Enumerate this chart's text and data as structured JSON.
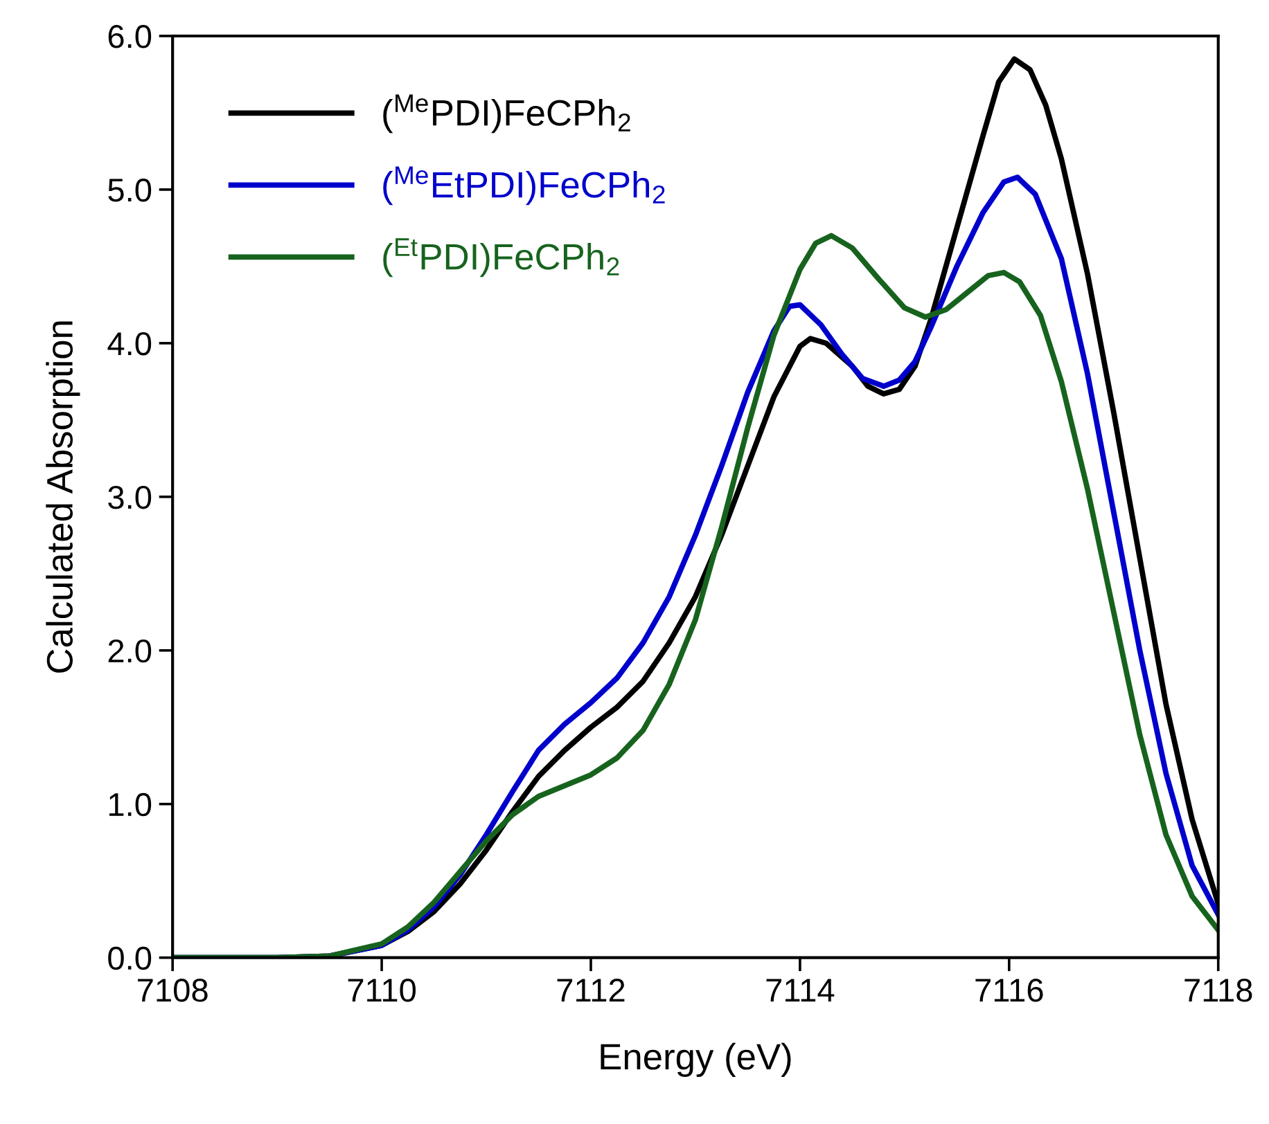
{
  "chart_data": {
    "type": "line",
    "xlabel": "Energy (eV)",
    "ylabel": "Calculated Absorption",
    "xlim": [
      7108,
      7118
    ],
    "ylim": [
      0,
      6
    ],
    "xticks": [
      7108,
      7110,
      7112,
      7114,
      7116,
      7118
    ],
    "yticks": [
      {
        "value": 0,
        "label": "0.0"
      },
      {
        "value": 1,
        "label": "1.0"
      },
      {
        "value": 2,
        "label": "2.0"
      },
      {
        "value": 3,
        "label": "3.0"
      },
      {
        "value": 4,
        "label": "4.0"
      },
      {
        "value": 5,
        "label": "5.0"
      },
      {
        "value": 6,
        "label": "6.0"
      }
    ],
    "grid": false,
    "legend": "top left",
    "marker": "none",
    "line_style": "solid",
    "series": [
      {
        "name": "($^{Me}$PDI)FeCPh$_{2}$",
        "color": "#000000",
        "x": [
          7108,
          7109,
          7109.5,
          7110,
          7110.25,
          7110.5,
          7110.75,
          7111,
          7111.25,
          7111.5,
          7111.75,
          7112,
          7112.25,
          7112.5,
          7112.75,
          7113,
          7113.25,
          7113.5,
          7113.75,
          7114,
          7114.1,
          7114.25,
          7114.5,
          7114.65,
          7114.8,
          7114.95,
          7115.1,
          7115.25,
          7115.5,
          7115.75,
          7115.9,
          7116.05,
          7116.2,
          7116.35,
          7116.5,
          7116.75,
          7117,
          7117.25,
          7117.5,
          7117.75,
          7118
        ],
        "values": [
          0,
          0,
          0.01,
          0.08,
          0.17,
          0.3,
          0.48,
          0.7,
          0.95,
          1.18,
          1.35,
          1.5,
          1.63,
          1.8,
          2.05,
          2.35,
          2.75,
          3.2,
          3.65,
          3.98,
          4.03,
          4.0,
          3.85,
          3.72,
          3.67,
          3.7,
          3.85,
          4.15,
          4.75,
          5.35,
          5.7,
          5.85,
          5.78,
          5.55,
          5.2,
          4.45,
          3.55,
          2.6,
          1.65,
          0.9,
          0.35
        ]
      },
      {
        "name": "($^{Me}$EtPDI)FeCPh$_{2}$",
        "color": "#0000cc",
        "x": [
          7108,
          7109,
          7109.5,
          7110,
          7110.25,
          7110.5,
          7110.75,
          7111,
          7111.25,
          7111.5,
          7111.75,
          7112,
          7112.25,
          7112.5,
          7112.75,
          7113,
          7113.25,
          7113.5,
          7113.75,
          7113.9,
          7114,
          7114.2,
          7114.4,
          7114.6,
          7114.8,
          7114.95,
          7115.1,
          7115.25,
          7115.5,
          7115.75,
          7115.95,
          7116.08,
          7116.25,
          7116.5,
          7116.75,
          7117,
          7117.25,
          7117.5,
          7117.75,
          7118
        ],
        "values": [
          0,
          0,
          0.01,
          0.08,
          0.18,
          0.33,
          0.54,
          0.8,
          1.08,
          1.35,
          1.52,
          1.66,
          1.82,
          2.05,
          2.35,
          2.75,
          3.2,
          3.68,
          4.08,
          4.24,
          4.25,
          4.12,
          3.93,
          3.77,
          3.72,
          3.76,
          3.88,
          4.1,
          4.5,
          4.85,
          5.05,
          5.08,
          4.97,
          4.55,
          3.8,
          2.9,
          2.0,
          1.2,
          0.6,
          0.28
        ]
      },
      {
        "name": "($^{Et}$PDI)FeCPh$_{2}$",
        "color": "#17631e",
        "x": [
          7108,
          7109,
          7109.5,
          7110,
          7110.25,
          7110.5,
          7110.75,
          7111,
          7111.25,
          7111.5,
          7111.75,
          7112,
          7112.25,
          7112.5,
          7112.75,
          7113,
          7113.25,
          7113.5,
          7113.75,
          7114,
          7114.15,
          7114.3,
          7114.5,
          7114.75,
          7115,
          7115.2,
          7115.4,
          7115.6,
          7115.8,
          7115.95,
          7116.1,
          7116.3,
          7116.5,
          7116.75,
          7117,
          7117.25,
          7117.5,
          7117.75,
          7118
        ],
        "values": [
          0,
          0,
          0.01,
          0.09,
          0.2,
          0.36,
          0.56,
          0.76,
          0.93,
          1.05,
          1.12,
          1.19,
          1.3,
          1.48,
          1.78,
          2.2,
          2.8,
          3.45,
          4.05,
          4.48,
          4.65,
          4.7,
          4.62,
          4.42,
          4.23,
          4.17,
          4.22,
          4.33,
          4.44,
          4.46,
          4.4,
          4.18,
          3.75,
          3.05,
          2.25,
          1.45,
          0.8,
          0.4,
          0.18
        ]
      }
    ]
  }
}
